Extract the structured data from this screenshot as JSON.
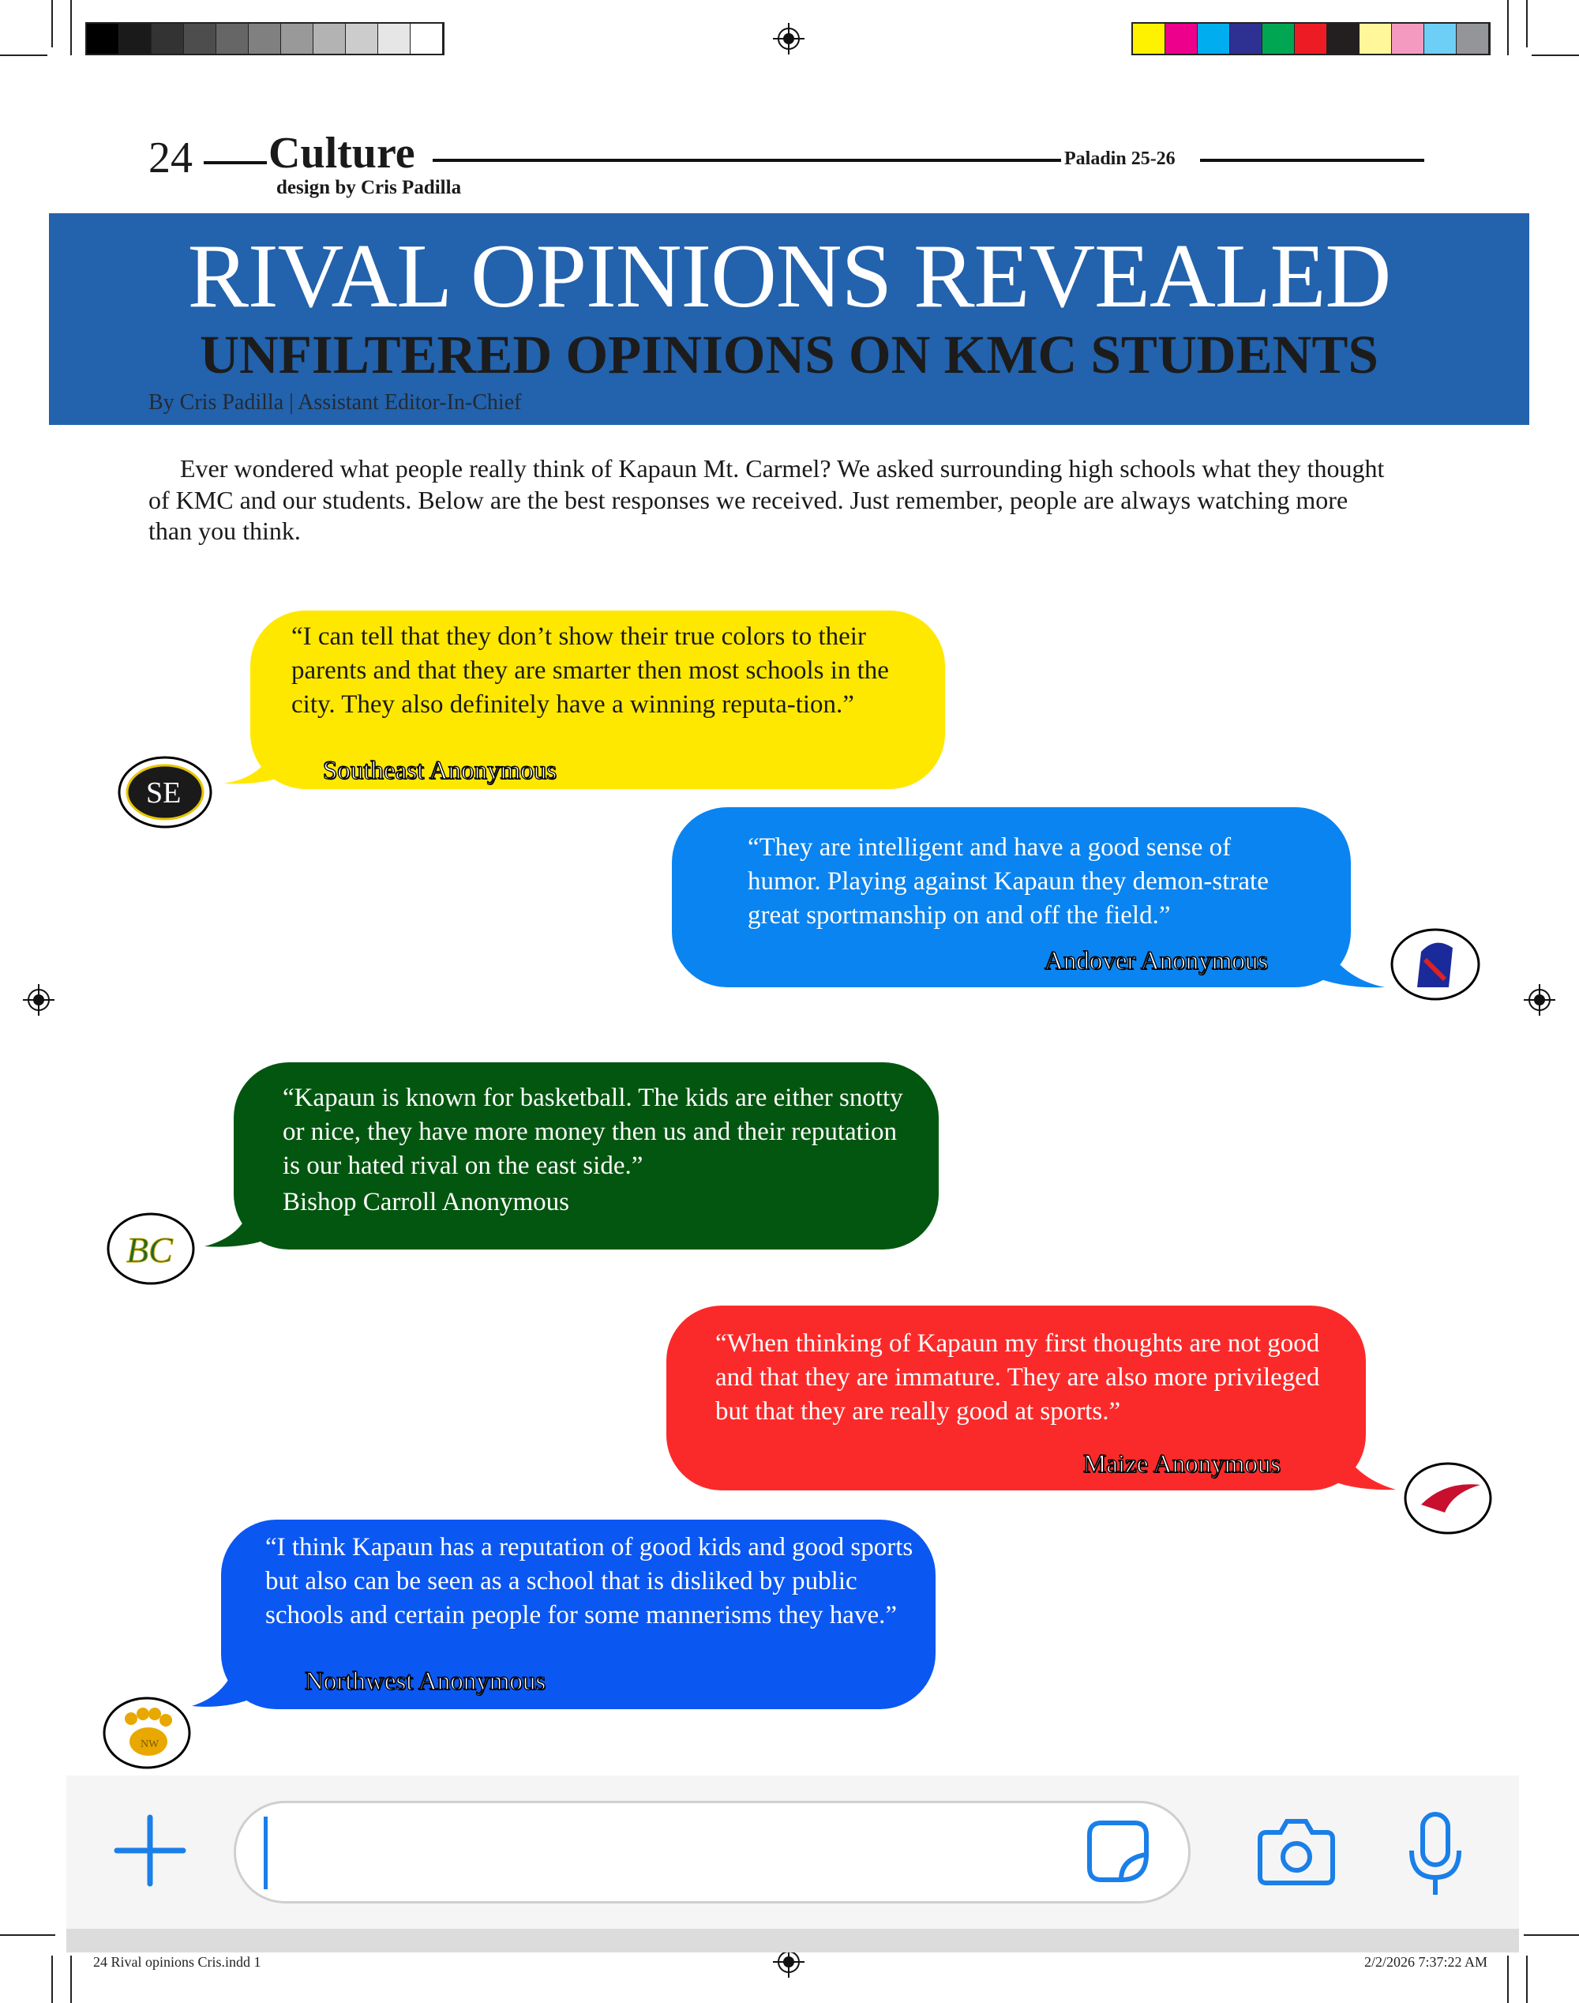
{
  "print_marks": {
    "grayscale": [
      "#000000",
      "#1a1a1a",
      "#333333",
      "#4d4d4d",
      "#666666",
      "#808080",
      "#999999",
      "#b3b3b3",
      "#cccccc",
      "#e6e6e6",
      "#ffffff"
    ],
    "colors": [
      "#fff200",
      "#ec008c",
      "#00aeef",
      "#2e3192",
      "#00a651",
      "#ed1c24",
      "#231f20",
      "#fff799",
      "#f49ac1",
      "#6dcff6",
      "#939598"
    ]
  },
  "header": {
    "page_number": "24",
    "section": "Culture",
    "publication": "Paladin 25-26",
    "design_credit": "design by Cris Padilla"
  },
  "banner": {
    "title": "RIVAL OPINIONS REVEALED",
    "subtitle": "UNFILTERED OPINIONS ON KMC STUDENTS",
    "byline": "By Cris Padilla | Assistant Editor-In-Chief",
    "color": "#2362ac"
  },
  "intro": "Ever wondered what people really think of Kapaun Mt. Carmel? We asked surrounding high schools what they thought of KMC and our students. Below are the best responses we received. Just remember, people are always watching more than you think.",
  "messages": [
    {
      "quote": "“I can tell that they don’t show their true colors to their parents and that they are smarter then most schools in the city. They also definitely have a winning reputa-tion.”",
      "author": "Southeast Anonymous",
      "color": "#ffe800",
      "logo_text": "SE"
    },
    {
      "quote": "“They are intelligent and have a good sense of humor. Playing against Kapaun they demon-strate great sportmanship on and off the field.”",
      "author": "Andover Anonymous",
      "color": "#0a84f0",
      "logo_text": ""
    },
    {
      "quote": "“Kapaun is known for basketball. The kids are either snotty or nice, they have more money then us and their reputation is our hated rival on the east side.”",
      "author": "Bishop Carroll Anonymous",
      "color": "#03560f",
      "logo_text": "BC"
    },
    {
      "quote": "“When thinking of Kapaun my first thoughts are not good and that they are immature. They are also more privileged but that they are really good at sports.”",
      "author": "Maize Anonymous",
      "color": "#fb2a2a",
      "logo_text": ""
    },
    {
      "quote": "“I think Kapaun has a reputation of good kids and good sports but also can be seen as a school that is disliked by public schools and certain people for some mannerisms they have.”",
      "author": "Northwest Anonymous",
      "color": "#0a57f2",
      "logo_text": "NW"
    }
  ],
  "chat_bar": {
    "accent": "#1a7fe8",
    "input_value": ""
  },
  "footer": {
    "file": "24 Rival opinions Cris.indd   1",
    "timestamp": "2/2/2026   7:37:22 AM"
  }
}
